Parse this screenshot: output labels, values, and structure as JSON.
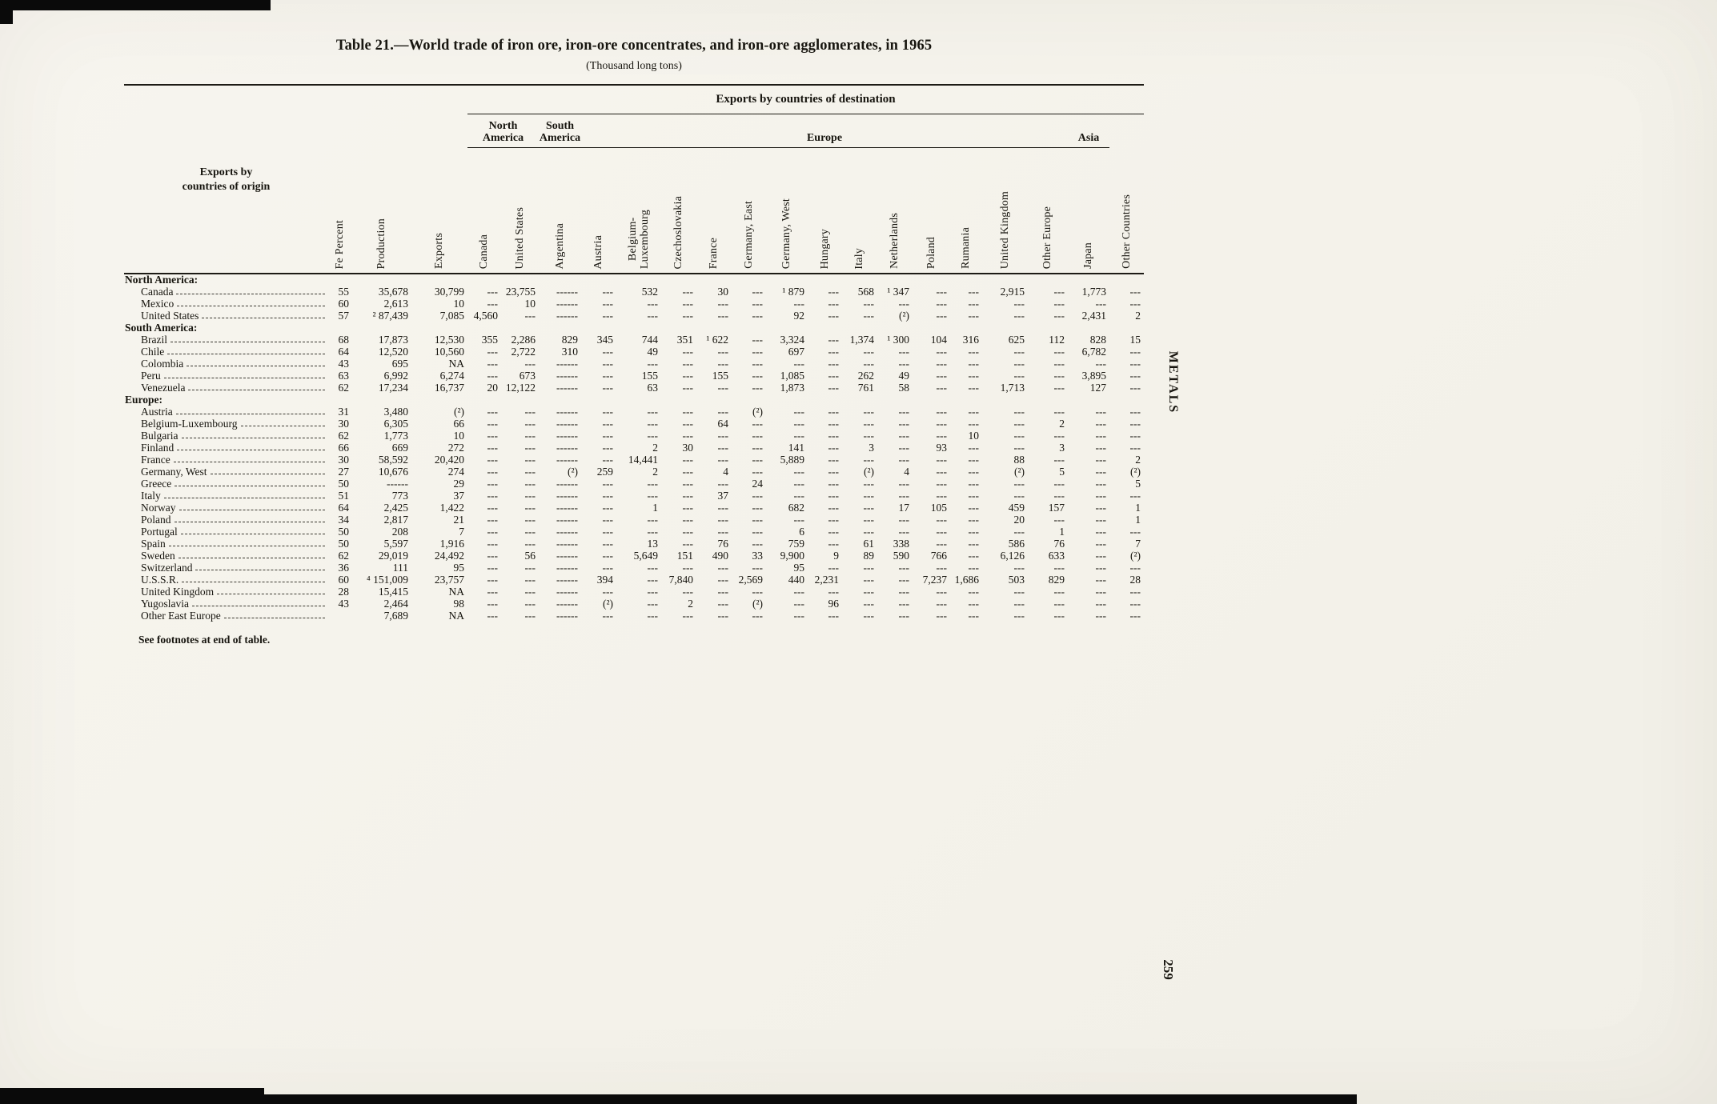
{
  "scan": {
    "side_label": "METALS",
    "page_number": "259"
  },
  "table": {
    "title": "Table 21.—World trade of iron ore, iron-ore concentrates, and iron-ore agglomerates, in 1965",
    "subtitle": "(Thousand long tons)",
    "stub_header": "Exports by\ncountries of origin",
    "destination_header": "Exports by countries of destination",
    "footnote": "See footnotes at end of table.",
    "stat_columns": [
      "Fe Percent",
      "Production",
      "Exports"
    ],
    "groups": [
      {
        "label": "North\nAmerica",
        "span": 2
      },
      {
        "label": "South\nAmerica",
        "span": 1
      },
      {
        "label": "Europe",
        "span": 13
      },
      {
        "label": "Asia",
        "span": 1
      },
      {
        "label": "",
        "span": 1
      }
    ],
    "dest_columns": [
      "Canada",
      "United States",
      "Argentina",
      "Austria",
      "Belgium-\nLuxembourg",
      "Czechoslovakia",
      "France",
      "Germany, East",
      "Germany, West",
      "Hungary",
      "Italy",
      "Netherlands",
      "Poland",
      "Rumania",
      "United Kingdom",
      "Other Europe",
      "Japan",
      "Other Countries"
    ],
    "rows": [
      {
        "section": "North America:"
      },
      {
        "label": "Canada",
        "cells": [
          "55",
          "35,678",
          "30,799",
          "---",
          "23,755",
          "------",
          "---",
          "532",
          "---",
          "30",
          "---",
          "¹ 879",
          "---",
          "568",
          "¹ 347",
          "---",
          "---",
          "2,915",
          "---",
          "1,773",
          "---"
        ]
      },
      {
        "label": "Mexico",
        "cells": [
          "60",
          "2,613",
          "10",
          "---",
          "10",
          "------",
          "---",
          "---",
          "---",
          "---",
          "---",
          "---",
          "---",
          "---",
          "---",
          "---",
          "---",
          "---",
          "---",
          "---",
          "---"
        ]
      },
      {
        "label": "United States",
        "cells": [
          "57",
          "² 87,439",
          "7,085",
          "4,560",
          "---",
          "------",
          "---",
          "---",
          "---",
          "---",
          "---",
          "92",
          "---",
          "---",
          "(²)",
          "---",
          "---",
          "---",
          "---",
          "2,431",
          "2"
        ]
      },
      {
        "section": "South America:"
      },
      {
        "label": "Brazil",
        "cells": [
          "68",
          "17,873",
          "12,530",
          "355",
          "2,286",
          "829",
          "345",
          "744",
          "351",
          "¹ 622",
          "---",
          "3,324",
          "---",
          "1,374",
          "¹ 300",
          "104",
          "316",
          "625",
          "112",
          "828",
          "15"
        ]
      },
      {
        "label": "Chile",
        "cells": [
          "64",
          "12,520",
          "10,560",
          "---",
          "2,722",
          "310",
          "---",
          "49",
          "---",
          "---",
          "---",
          "697",
          "---",
          "---",
          "---",
          "---",
          "---",
          "---",
          "---",
          "6,782",
          "---"
        ]
      },
      {
        "label": "Colombia",
        "cells": [
          "43",
          "695",
          "NA",
          "---",
          "---",
          "------",
          "---",
          "---",
          "---",
          "---",
          "---",
          "---",
          "---",
          "---",
          "---",
          "---",
          "---",
          "---",
          "---",
          "---",
          "---"
        ]
      },
      {
        "label": "Peru",
        "cells": [
          "63",
          "6,992",
          "6,274",
          "---",
          "673",
          "------",
          "---",
          "155",
          "---",
          "155",
          "---",
          "1,085",
          "---",
          "262",
          "49",
          "---",
          "---",
          "---",
          "---",
          "3,895",
          "---"
        ]
      },
      {
        "label": "Venezuela",
        "cells": [
          "62",
          "17,234",
          "16,737",
          "20",
          "12,122",
          "------",
          "---",
          "63",
          "---",
          "---",
          "---",
          "1,873",
          "---",
          "761",
          "58",
          "---",
          "---",
          "1,713",
          "---",
          "127",
          "---"
        ]
      },
      {
        "section": "Europe:"
      },
      {
        "label": "Austria",
        "cells": [
          "31",
          "3,480",
          "(²)",
          "---",
          "---",
          "------",
          "---",
          "---",
          "---",
          "---",
          "(²)",
          "---",
          "---",
          "---",
          "---",
          "---",
          "---",
          "---",
          "---",
          "---",
          "---"
        ]
      },
      {
        "label": "Belgium-Luxembourg",
        "cells": [
          "30",
          "6,305",
          "66",
          "---",
          "---",
          "------",
          "---",
          "---",
          "---",
          "64",
          "---",
          "---",
          "---",
          "---",
          "---",
          "---",
          "---",
          "---",
          "2",
          "---",
          "---"
        ]
      },
      {
        "label": "Bulgaria",
        "cells": [
          "62",
          "1,773",
          "10",
          "---",
          "---",
          "------",
          "---",
          "---",
          "---",
          "---",
          "---",
          "---",
          "---",
          "---",
          "---",
          "---",
          "10",
          "---",
          "---",
          "---",
          "---"
        ]
      },
      {
        "label": "Finland",
        "cells": [
          "66",
          "669",
          "272",
          "---",
          "---",
          "------",
          "---",
          "2",
          "30",
          "---",
          "---",
          "141",
          "---",
          "3",
          "---",
          "93",
          "---",
          "---",
          "3",
          "---",
          "---"
        ]
      },
      {
        "label": "France",
        "cells": [
          "30",
          "58,592",
          "20,420",
          "---",
          "---",
          "------",
          "---",
          "14,441",
          "---",
          "---",
          "---",
          "5,889",
          "---",
          "---",
          "---",
          "---",
          "---",
          "88",
          "---",
          "---",
          "2"
        ]
      },
      {
        "label": "Germany, West",
        "cells": [
          "27",
          "10,676",
          "274",
          "---",
          "---",
          "(²)",
          "259",
          "2",
          "---",
          "4",
          "---",
          "---",
          "---",
          "(²)",
          "4",
          "---",
          "---",
          "(²)",
          "5",
          "---",
          "(²)"
        ]
      },
      {
        "label": "Greece",
        "cells": [
          "50",
          "------",
          "29",
          "---",
          "---",
          "------",
          "---",
          "---",
          "---",
          "---",
          "24",
          "---",
          "---",
          "---",
          "---",
          "---",
          "---",
          "---",
          "---",
          "---",
          "5"
        ]
      },
      {
        "label": "Italy",
        "cells": [
          "51",
          "773",
          "37",
          "---",
          "---",
          "------",
          "---",
          "---",
          "---",
          "37",
          "---",
          "---",
          "---",
          "---",
          "---",
          "---",
          "---",
          "---",
          "---",
          "---",
          "---"
        ]
      },
      {
        "label": "Norway",
        "cells": [
          "64",
          "2,425",
          "1,422",
          "---",
          "---",
          "------",
          "---",
          "1",
          "---",
          "---",
          "---",
          "682",
          "---",
          "---",
          "17",
          "105",
          "---",
          "459",
          "157",
          "---",
          "1"
        ]
      },
      {
        "label": "Poland",
        "cells": [
          "34",
          "2,817",
          "21",
          "---",
          "---",
          "------",
          "---",
          "---",
          "---",
          "---",
          "---",
          "---",
          "---",
          "---",
          "---",
          "---",
          "---",
          "20",
          "---",
          "---",
          "1"
        ]
      },
      {
        "label": "Portugal",
        "cells": [
          "50",
          "208",
          "7",
          "---",
          "---",
          "------",
          "---",
          "---",
          "---",
          "---",
          "---",
          "6",
          "---",
          "---",
          "---",
          "---",
          "---",
          "---",
          "1",
          "---",
          "---"
        ]
      },
      {
        "label": "Spain",
        "cells": [
          "50",
          "5,597",
          "1,916",
          "---",
          "---",
          "------",
          "---",
          "13",
          "---",
          "76",
          "---",
          "759",
          "---",
          "61",
          "338",
          "---",
          "---",
          "586",
          "76",
          "---",
          "7"
        ]
      },
      {
        "label": "Sweden",
        "cells": [
          "62",
          "29,019",
          "24,492",
          "---",
          "56",
          "------",
          "---",
          "5,649",
          "151",
          "490",
          "33",
          "9,900",
          "9",
          "89",
          "590",
          "766",
          "---",
          "6,126",
          "633",
          "---",
          "(²)"
        ]
      },
      {
        "label": "Switzerland",
        "cells": [
          "36",
          "111",
          "95",
          "---",
          "---",
          "------",
          "---",
          "---",
          "---",
          "---",
          "---",
          "95",
          "---",
          "---",
          "---",
          "---",
          "---",
          "---",
          "---",
          "---",
          "---"
        ]
      },
      {
        "label": "U.S.S.R.",
        "cells": [
          "60",
          "⁴ 151,009",
          "23,757",
          "---",
          "---",
          "------",
          "394",
          "---",
          "7,840",
          "---",
          "2,569",
          "440",
          "2,231",
          "---",
          "---",
          "7,237",
          "1,686",
          "503",
          "829",
          "---",
          "28"
        ]
      },
      {
        "label": "United Kingdom",
        "cells": [
          "28",
          "15,415",
          "NA",
          "---",
          "---",
          "------",
          "---",
          "---",
          "---",
          "---",
          "---",
          "---",
          "---",
          "---",
          "---",
          "---",
          "---",
          "---",
          "---",
          "---",
          "---"
        ]
      },
      {
        "label": "Yugoslavia",
        "cells": [
          "43",
          "2,464",
          "98",
          "---",
          "---",
          "------",
          "(²)",
          "---",
          "2",
          "---",
          "(²)",
          "---",
          "96",
          "---",
          "---",
          "---",
          "---",
          "---",
          "---",
          "---",
          "---"
        ]
      },
      {
        "label": "Other East Europe",
        "cells": [
          "",
          "7,689",
          "NA",
          "---",
          "---",
          "------",
          "---",
          "---",
          "---",
          "---",
          "---",
          "---",
          "---",
          "---",
          "---",
          "---",
          "---",
          "---",
          "---",
          "---",
          "---"
        ]
      }
    ]
  }
}
